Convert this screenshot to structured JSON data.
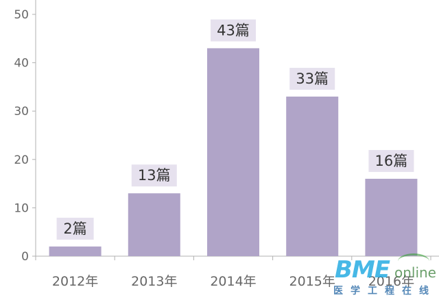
{
  "chart_data": {
    "type": "bar",
    "categories": [
      "2012年",
      "2013年",
      "2014年",
      "2015年",
      "2016年"
    ],
    "values": [
      2,
      13,
      43,
      33,
      16
    ],
    "data_labels": [
      "2篇",
      "13篇",
      "43篇",
      "33篇",
      "16篇"
    ],
    "ylim": [
      0,
      50
    ],
    "yticks": [
      0,
      10,
      20,
      30,
      40,
      50
    ],
    "grid": false,
    "legend": "none",
    "colors": {
      "bar": "#b0a4c8",
      "label_box": "#e6e1ee",
      "axis": "#b0b0b0"
    }
  },
  "watermark": {
    "main": "BME",
    "sub": "online",
    "cn": "医学工程在线"
  }
}
